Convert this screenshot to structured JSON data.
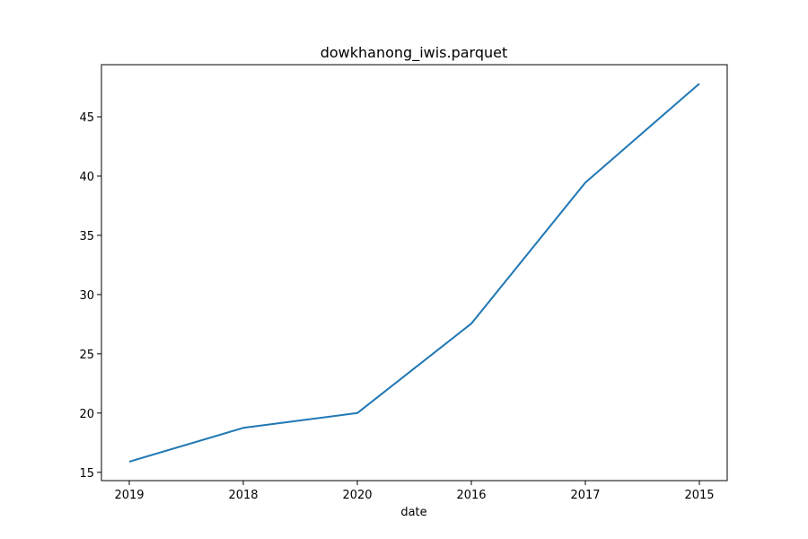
{
  "chart_data": {
    "type": "line",
    "title": "dowkhanong_iwis.parquet",
    "xlabel": "date",
    "ylabel": "",
    "categories": [
      "2019",
      "2018",
      "2020",
      "2016",
      "2017",
      "2015"
    ],
    "series": [
      {
        "values": [
          15.9,
          18.75,
          20.0,
          27.55,
          39.45,
          47.8
        ],
        "color": "#1f77b4"
      }
    ],
    "ylim": [
      14.3,
      49.4
    ],
    "yticks": [
      15,
      20,
      25,
      30,
      35,
      40,
      45
    ],
    "grid": false,
    "legend": "none"
  }
}
